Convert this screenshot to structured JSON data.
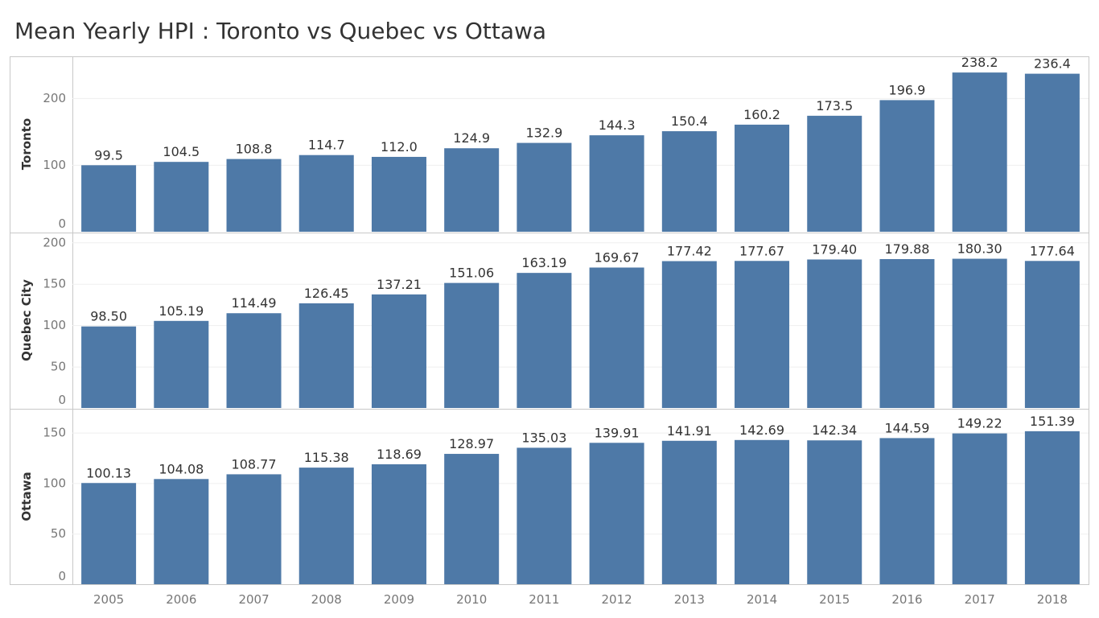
{
  "title": "Mean Yearly HPI : Toronto vs Quebec vs Ottawa",
  "chart_data": {
    "type": "bar",
    "title": "Mean Yearly HPI : Toronto vs Quebec vs Ottawa",
    "categories": [
      "2005",
      "2006",
      "2007",
      "2008",
      "2009",
      "2010",
      "2011",
      "2012",
      "2013",
      "2014",
      "2015",
      "2016",
      "2017",
      "2018"
    ],
    "bar_color": "#4e79a7",
    "grid": true,
    "series": [
      {
        "name": "Toronto",
        "values": [
          99.5,
          104.5,
          108.8,
          114.7,
          112.0,
          124.9,
          132.9,
          144.3,
          150.4,
          160.2,
          173.5,
          196.9,
          238.2,
          236.4
        ],
        "value_labels": [
          "99.5",
          "104.5",
          "108.8",
          "114.7",
          "112.0",
          "124.9",
          "132.9",
          "144.3",
          "150.4",
          "160.2",
          "173.5",
          "196.9",
          "238.2",
          "236.4"
        ],
        "yticks": [
          0,
          100,
          200
        ],
        "ylim": [
          0,
          260
        ]
      },
      {
        "name": "Quebec City",
        "values": [
          98.5,
          105.19,
          114.49,
          126.45,
          137.21,
          151.06,
          163.19,
          169.67,
          177.42,
          177.67,
          179.4,
          179.88,
          180.3,
          177.64
        ],
        "value_labels": [
          "98.50",
          "105.19",
          "114.49",
          "126.45",
          "137.21",
          "151.06",
          "163.19",
          "169.67",
          "177.42",
          "177.67",
          "179.40",
          "179.88",
          "180.30",
          "177.64"
        ],
        "yticks": [
          0,
          50,
          100,
          150,
          200
        ],
        "ylim": [
          0,
          210
        ]
      },
      {
        "name": "Ottawa",
        "values": [
          100.13,
          104.08,
          108.77,
          115.38,
          118.69,
          128.97,
          135.03,
          139.91,
          141.91,
          142.69,
          142.34,
          144.59,
          149.22,
          151.39
        ],
        "value_labels": [
          "100.13",
          "104.08",
          "108.77",
          "115.38",
          "118.69",
          "128.97",
          "135.03",
          "139.91",
          "141.91",
          "142.69",
          "142.34",
          "144.59",
          "149.22",
          "151.39"
        ],
        "yticks": [
          0,
          50,
          100,
          150
        ],
        "ylim": [
          0,
          172
        ]
      }
    ]
  }
}
